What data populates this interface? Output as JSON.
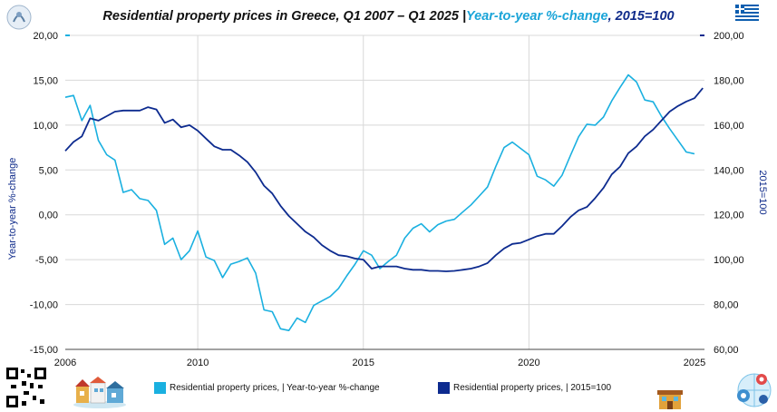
{
  "title": {
    "part1": "Residential property prices in Greece, Q1 2007 – Q1 2025 |",
    "part2": "Year-to-year %-change",
    "part3": ", 2015=100"
  },
  "colors": {
    "yoy": "#1ab0e0",
    "index": "#0d2b8f",
    "grid": "#d8d8d8"
  },
  "legend": {
    "yoy": "Residential property prices, | Year-to-year %-change",
    "index": "Residential property prices, |  2015=100"
  },
  "icons": [
    "eu-flower-logo-icon",
    "greece-flag-icon",
    "qr-code-icon",
    "houses-illustration-icon",
    "house-icon",
    "globe-gears-icon"
  ],
  "chart_data": {
    "type": "line",
    "title": "Residential property prices in Greece, Q1 2007 – Q1 2025",
    "x_ticks": [
      "2006",
      "2010",
      "2015",
      "2020",
      "2025"
    ],
    "x_tick_values": [
      2006,
      2010,
      2015,
      2020,
      2025
    ],
    "xlim": [
      2006,
      2025.3
    ],
    "left_axis": {
      "label": "Year-to-year %-change",
      "range": [
        -15,
        20
      ],
      "ticks": [
        "20,00",
        "15,00",
        "10,00",
        "5,00",
        "0,00",
        "-5,00",
        "-10,00",
        "-15,00"
      ],
      "tick_values": [
        20,
        15,
        10,
        5,
        0,
        -5,
        -10,
        -15
      ]
    },
    "right_axis": {
      "label": "2015=100",
      "range": [
        60,
        200
      ],
      "ticks": [
        "200,00",
        "180,00",
        "160,00",
        "140,00",
        "120,00",
        "100,00",
        "80,00",
        "60,00"
      ],
      "tick_values": [
        200,
        180,
        160,
        140,
        120,
        100,
        80,
        60
      ]
    },
    "x_step": 0.25,
    "x_start": 2006,
    "series": [
      {
        "name": "Residential property prices, | Year-to-year %-change",
        "axis": "left",
        "values": [
          13.1,
          13.3,
          10.5,
          12.2,
          8.3,
          6.7,
          6.1,
          2.5,
          2.8,
          1.8,
          1.6,
          0.5,
          -3.3,
          -2.6,
          -5.0,
          -4.0,
          -1.8,
          -4.7,
          -5.1,
          -7.0,
          -5.5,
          -5.2,
          -4.8,
          -6.5,
          -10.6,
          -10.8,
          -12.7,
          -12.9,
          -11.5,
          -12.0,
          -10.1,
          -9.6,
          -9.1,
          -8.2,
          -6.8,
          -5.5,
          -4.0,
          -4.5,
          -6.0,
          -5.2,
          -4.5,
          -2.6,
          -1.5,
          -1.0,
          -1.9,
          -1.1,
          -0.7,
          -0.5,
          0.3,
          1.1,
          2.1,
          3.1,
          5.4,
          7.5,
          8.1,
          7.4,
          6.7,
          4.3,
          3.9,
          3.2,
          4.4,
          6.6,
          8.7,
          10.1,
          10.0,
          10.9,
          12.7,
          14.2,
          15.6,
          14.8,
          12.8,
          12.6,
          11.0,
          9.6,
          8.3,
          7.0,
          6.8
        ]
      },
      {
        "name": "Residential property prices, |  2015=100",
        "axis": "right",
        "values": [
          148.5,
          152.5,
          155.0,
          163.0,
          162.0,
          164.0,
          166.0,
          166.5,
          166.5,
          166.5,
          168.0,
          167.0,
          161.0,
          162.5,
          159.0,
          160.0,
          157.5,
          154.0,
          150.5,
          149.0,
          149.0,
          146.5,
          143.5,
          139.0,
          133.0,
          129.5,
          124.0,
          119.5,
          116.0,
          112.5,
          110.0,
          106.5,
          104.0,
          102.0,
          101.5,
          100.5,
          100.0,
          96.0,
          97.0,
          97.0,
          97.0,
          96.0,
          95.5,
          95.5,
          95.0,
          95.0,
          94.8,
          95.0,
          95.5,
          96.0,
          97.0,
          98.5,
          102.0,
          105.0,
          107.0,
          107.5,
          109.0,
          110.5,
          111.5,
          111.5,
          115.0,
          119.0,
          122.0,
          123.5,
          127.5,
          132.0,
          138.0,
          141.5,
          147.5,
          150.5,
          155.0,
          158.0,
          162.0,
          166.0,
          168.5,
          170.5,
          172.0,
          176.5
        ]
      }
    ],
    "grid": true,
    "legend_position": "bottom"
  }
}
